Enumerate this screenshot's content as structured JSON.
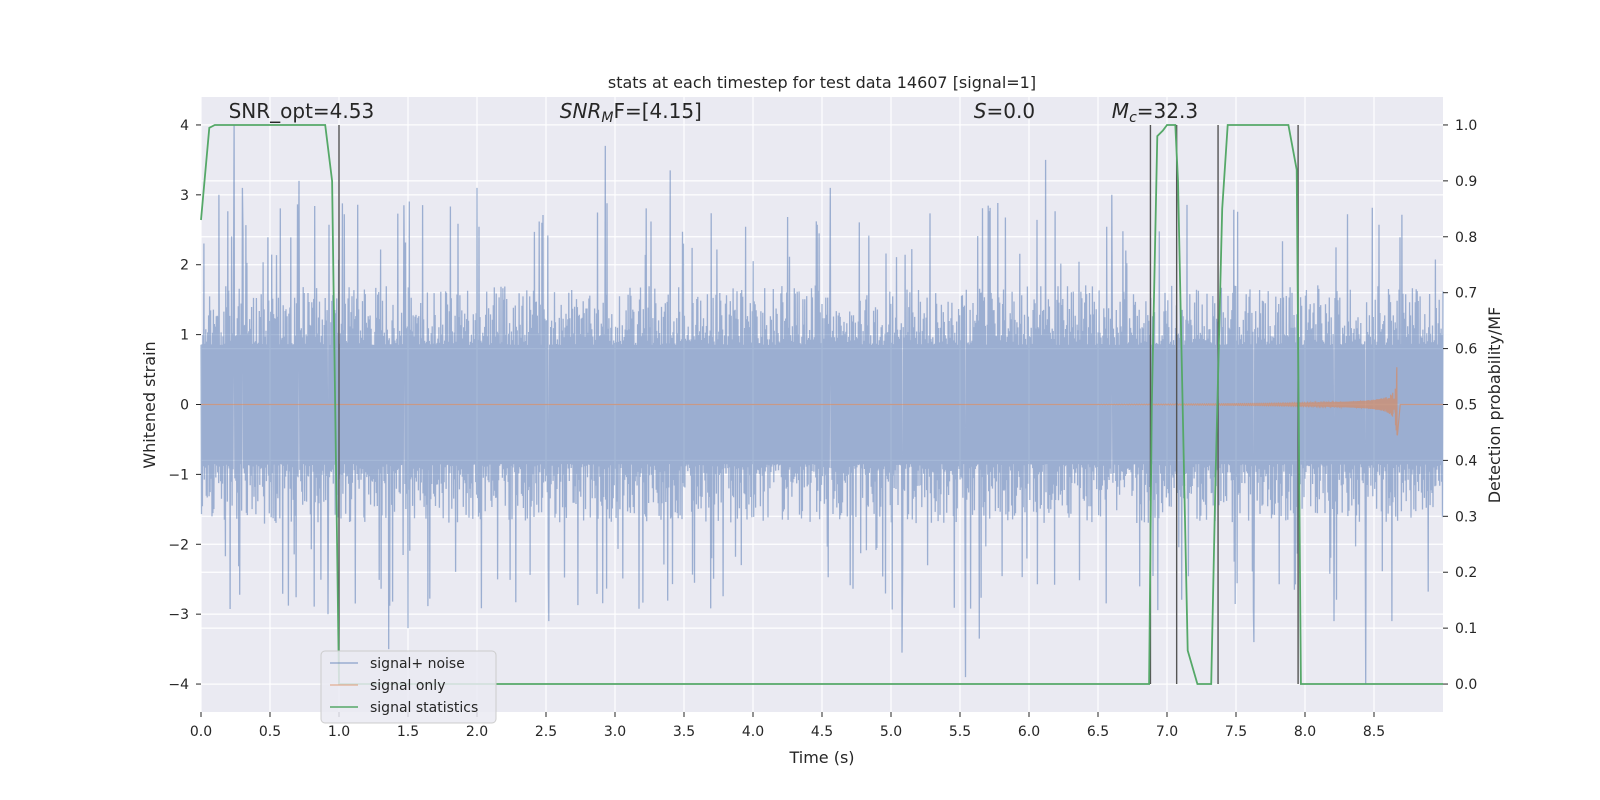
{
  "chart_data": {
    "type": "line",
    "title": "stats at each timestep for test data 14607 [signal=1]",
    "xlabel": "Time (s)",
    "ylabel": "Whitened strain",
    "y2label": "Detection probability/MF",
    "xlim": [
      0.0,
      9.0
    ],
    "ylim": [
      -4.4,
      4.4
    ],
    "y2lim": [
      -0.05,
      1.05
    ],
    "x_ticks": [
      "0.0",
      "0.5",
      "1.0",
      "1.5",
      "2.0",
      "2.5",
      "3.0",
      "3.5",
      "4.0",
      "4.5",
      "5.0",
      "5.5",
      "6.0",
      "6.5",
      "7.0",
      "7.5",
      "8.0",
      "8.5"
    ],
    "x_tick_values": [
      0.0,
      0.5,
      1.0,
      1.5,
      2.0,
      2.5,
      3.0,
      3.5,
      4.0,
      4.5,
      5.0,
      5.5,
      6.0,
      6.5,
      7.0,
      7.5,
      8.0,
      8.5
    ],
    "y_ticks": [
      "−4",
      "−3",
      "−2",
      "−1",
      "0",
      "1",
      "2",
      "3",
      "4"
    ],
    "y_tick_values": [
      -4,
      -3,
      -2,
      -1,
      0,
      1,
      2,
      3,
      4
    ],
    "y2_ticks": [
      "0.0",
      "0.1",
      "0.2",
      "0.3",
      "0.4",
      "0.5",
      "0.6",
      "0.7",
      "0.8",
      "0.9",
      "1.0"
    ],
    "y2_tick_values": [
      0.0,
      0.1,
      0.2,
      0.3,
      0.4,
      0.5,
      0.6,
      0.7,
      0.8,
      0.9,
      1.0
    ],
    "grid": true,
    "legend_position": "lower-left",
    "annotations": [
      {
        "text": "SNR_opt=4.53",
        "x": 0.2,
        "y": 4.1
      },
      {
        "text": "SNR",
        "sub": "M",
        "rest": "F=[4.15]",
        "x": 2.6,
        "y": 4.1
      },
      {
        "text": "S",
        "rest": "=0.0",
        "x": 5.6,
        "y": 4.1
      },
      {
        "text": "M",
        "sub": "c",
        "rest": "=32.3",
        "x": 6.6,
        "y": 4.1
      }
    ],
    "series": [
      {
        "name": "signal+ noise",
        "color": "#4c72b0",
        "envelope_typical": 1.55,
        "peaks": [
          {
            "x": 0.24,
            "y": 4.0
          },
          {
            "x": 0.13,
            "y": 3.0
          },
          {
            "x": 0.3,
            "y": 3.1
          },
          {
            "x": 0.71,
            "y": 3.2
          },
          {
            "x": 1.47,
            "y": 2.85
          },
          {
            "x": 2.0,
            "y": 3.1
          },
          {
            "x": 2.47,
            "y": 2.6
          },
          {
            "x": 2.93,
            "y": 3.7
          },
          {
            "x": 3.4,
            "y": 3.35
          },
          {
            "x": 4.56,
            "y": 3.1
          },
          {
            "x": 6.12,
            "y": 3.5
          },
          {
            "x": 6.6,
            "y": 3.0
          },
          {
            "x": 0.92,
            "y": -3.0
          },
          {
            "x": 1.36,
            "y": -3.5
          },
          {
            "x": 1.5,
            "y": -3.2
          },
          {
            "x": 2.52,
            "y": -3.1
          },
          {
            "x": 5.08,
            "y": -3.55
          },
          {
            "x": 5.54,
            "y": -3.9
          },
          {
            "x": 5.64,
            "y": -3.35
          },
          {
            "x": 7.63,
            "y": -3.4
          },
          {
            "x": 8.21,
            "y": -3.1
          },
          {
            "x": 8.63,
            "y": -3.1
          },
          {
            "x": 8.44,
            "y": -4.0
          }
        ]
      },
      {
        "name": "signal only",
        "color": "#dd8452",
        "chirp_start": 6.5,
        "merger_time": 8.67,
        "peak_amplitude": 1.0
      },
      {
        "name": "signal statistics",
        "color": "#55a868",
        "axis": "right",
        "x": [
          0.0,
          0.06,
          0.1,
          0.2,
          0.3,
          0.6,
          0.9,
          0.95,
          1.0,
          1.04,
          1.05,
          1.1,
          2.0,
          4.0,
          6.0,
          6.87,
          6.89,
          6.93,
          6.97,
          7.0,
          7.02,
          7.06,
          7.08,
          7.15,
          7.22,
          7.32,
          7.35,
          7.4,
          7.44,
          7.5,
          7.88,
          7.94,
          7.97,
          8.0,
          8.5,
          9.0
        ],
        "y": [
          0.83,
          0.995,
          1.0,
          1.0,
          1.0,
          1.0,
          1.0,
          0.9,
          0.0,
          0.0,
          0.0,
          0.0,
          0.0,
          0.0,
          0.0,
          0.0,
          0.5,
          0.98,
          0.99,
          1.0,
          1.0,
          1.0,
          0.9,
          0.06,
          0.0,
          0.0,
          0.35,
          0.85,
          1.0,
          1.0,
          1.0,
          0.92,
          0.0,
          0.0,
          0.0,
          0.0
        ]
      }
    ],
    "vertical_lines": [
      1.0,
      6.88,
      7.07,
      7.37,
      7.95
    ]
  }
}
